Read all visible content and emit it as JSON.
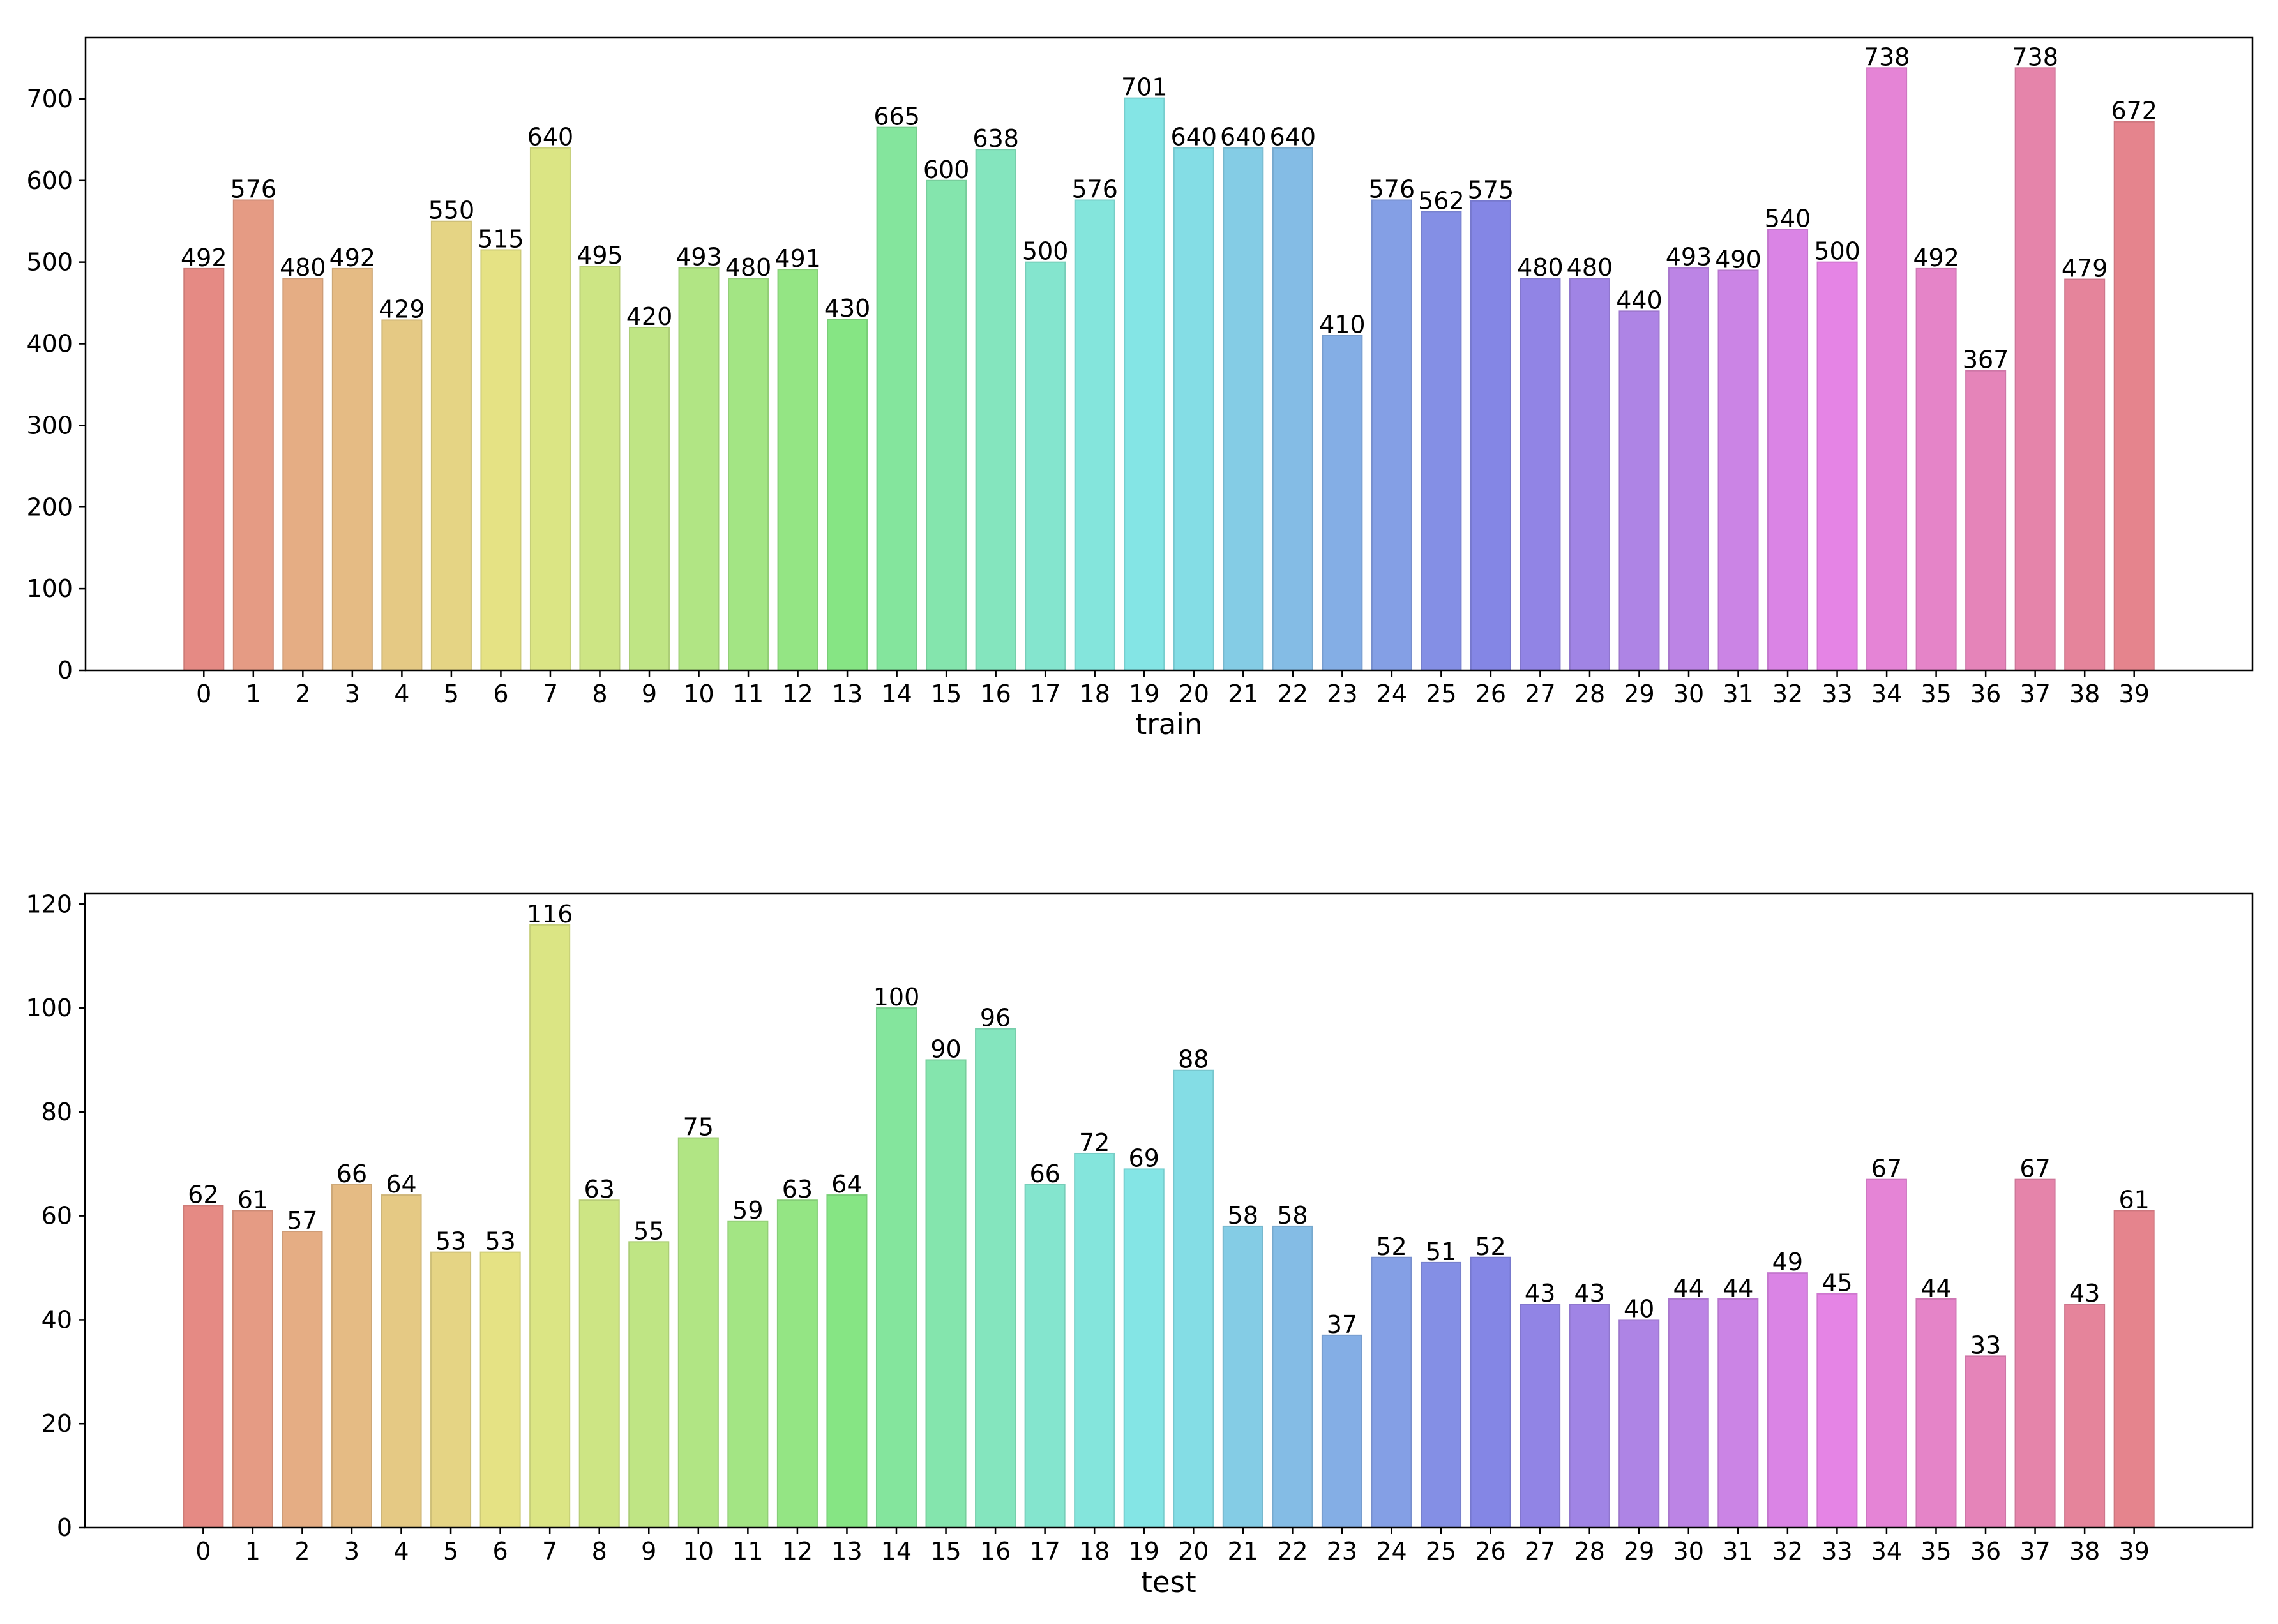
{
  "chart_data": [
    {
      "type": "bar",
      "xlabel": "train",
      "ylabel": "",
      "title": "",
      "categories": [
        "0",
        "1",
        "2",
        "3",
        "4",
        "5",
        "6",
        "7",
        "8",
        "9",
        "10",
        "11",
        "12",
        "13",
        "14",
        "15",
        "16",
        "17",
        "18",
        "19",
        "20",
        "21",
        "22",
        "23",
        "24",
        "25",
        "26",
        "27",
        "28",
        "29",
        "30",
        "31",
        "32",
        "33",
        "34",
        "35",
        "36",
        "37",
        "38",
        "39"
      ],
      "values": [
        492,
        576,
        480,
        492,
        429,
        550,
        515,
        640,
        495,
        420,
        493,
        480,
        491,
        430,
        665,
        600,
        638,
        500,
        576,
        701,
        640,
        640,
        640,
        410,
        576,
        562,
        575,
        480,
        480,
        440,
        493,
        490,
        540,
        500,
        738,
        492,
        367,
        738,
        479,
        672
      ],
      "yticks": [
        0,
        100,
        200,
        300,
        400,
        500,
        600,
        700
      ],
      "ylim": [
        0,
        775
      ],
      "grid": false,
      "data_labels": true
    },
    {
      "type": "bar",
      "xlabel": "test",
      "ylabel": "",
      "title": "",
      "categories": [
        "0",
        "1",
        "2",
        "3",
        "4",
        "5",
        "6",
        "7",
        "8",
        "9",
        "10",
        "11",
        "12",
        "13",
        "14",
        "15",
        "16",
        "17",
        "18",
        "19",
        "20",
        "21",
        "22",
        "23",
        "24",
        "25",
        "26",
        "27",
        "28",
        "29",
        "30",
        "31",
        "32",
        "33",
        "34",
        "35",
        "36",
        "37",
        "38",
        "39"
      ],
      "values": [
        62,
        61,
        57,
        66,
        64,
        53,
        53,
        116,
        63,
        55,
        75,
        59,
        63,
        64,
        100,
        90,
        96,
        66,
        72,
        69,
        88,
        58,
        58,
        37,
        52,
        51,
        52,
        43,
        43,
        40,
        44,
        44,
        49,
        45,
        67,
        44,
        33,
        67,
        43,
        61
      ],
      "yticks": [
        0,
        20,
        40,
        60,
        80,
        100,
        120
      ],
      "ylim": [
        0,
        122
      ],
      "grid": false,
      "data_labels": true
    }
  ],
  "colors": {
    "palette": [
      "#e58a84",
      "#e59b84",
      "#e5ad84",
      "#e5bb84",
      "#e5c984",
      "#e5d484",
      "#e5e284",
      "#dbe584",
      "#cde584",
      "#bfe584",
      "#b1e584",
      "#a3e584",
      "#94e584",
      "#86e584",
      "#84e59d",
      "#84e5ad",
      "#84e5be",
      "#84e5ce",
      "#84e5dc",
      "#84e5e5",
      "#84dde5",
      "#84cce5",
      "#84bce5",
      "#84aee5",
      "#849fe5",
      "#848fe5",
      "#8486e5",
      "#9184e5",
      "#a084e5",
      "#ae84e5",
      "#bc84e5",
      "#cb84e5",
      "#da84e5",
      "#e584e5",
      "#e584d6",
      "#e584c8",
      "#e584b9",
      "#e584aa",
      "#e5849b",
      "#e5848d"
    ],
    "frame": "#000000",
    "text": "#000000"
  }
}
